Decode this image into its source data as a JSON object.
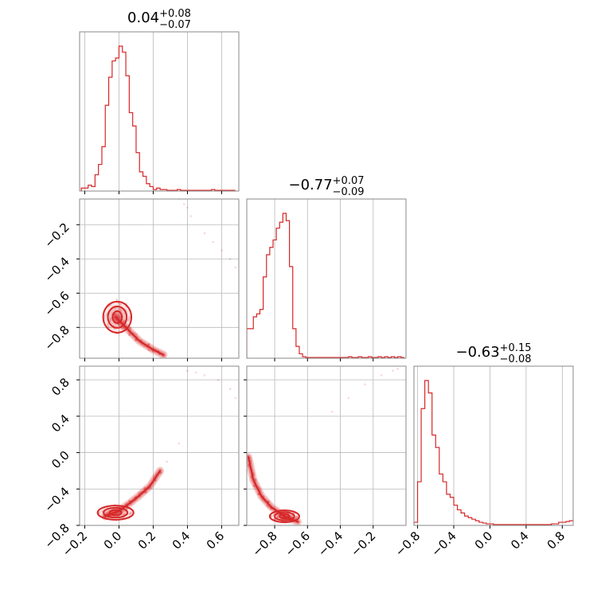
{
  "chart_data": {
    "type": "corner",
    "color": "#d62728",
    "grid": true,
    "panels": [
      {
        "id": "hist-0",
        "type": "hist",
        "col": 0,
        "row": 0,
        "title": {
          "median": "0.04",
          "plus": "+0.08",
          "minus": "−0.07"
        },
        "xlim": [
          -0.23,
          0.7
        ],
        "xticks": [
          -0.2,
          0.0,
          0.2,
          0.4,
          0.6
        ],
        "show_xlabels": false,
        "show_ylabels": false,
        "bins": [
          -0.22,
          -0.2,
          -0.18,
          -0.16,
          -0.14,
          -0.12,
          -0.1,
          -0.08,
          -0.06,
          -0.04,
          -0.02,
          0.0,
          0.02,
          0.04,
          0.06,
          0.08,
          0.1,
          0.12,
          0.14,
          0.16,
          0.18,
          0.2,
          0.22,
          0.24,
          0.26,
          0.28,
          0.3,
          0.32,
          0.34,
          0.36,
          0.38,
          0.4,
          0.42,
          0.44,
          0.46,
          0.48,
          0.5,
          0.52,
          0.54,
          0.56,
          0.58,
          0.6,
          0.62,
          0.64,
          0.66,
          0.68
        ],
        "counts": [
          0.02,
          0.02,
          0.04,
          0.03,
          0.11,
          0.18,
          0.3,
          0.58,
          0.77,
          0.88,
          0.9,
          0.98,
          0.94,
          0.78,
          0.53,
          0.44,
          0.26,
          0.13,
          0.1,
          0.05,
          0.03,
          0.01,
          0.02,
          0.01,
          0.01,
          0.005,
          0.005,
          0.005,
          0.01,
          0.005,
          0.005,
          0.005,
          0.005,
          0.005,
          0.005,
          0.005,
          0.005,
          0.005,
          0.01,
          0.005,
          0.005,
          0.005,
          0.005,
          0.005,
          0.005
        ]
      },
      {
        "id": "hist-1",
        "type": "hist",
        "col": 1,
        "row": 1,
        "title": {
          "median": "−0.77",
          "plus": "+0.07",
          "minus": "−0.09"
        },
        "xlim": [
          -0.97,
          0.0
        ],
        "xticks": [
          -0.8,
          -0.6,
          -0.4,
          -0.2
        ],
        "show_xlabels": false,
        "show_ylabels": false,
        "bins": [
          -0.97,
          -0.95,
          -0.93,
          -0.91,
          -0.89,
          -0.87,
          -0.85,
          -0.83,
          -0.81,
          -0.79,
          -0.77,
          -0.75,
          -0.73,
          -0.71,
          -0.69,
          -0.67,
          -0.65,
          -0.63,
          -0.61,
          -0.59,
          -0.57,
          -0.55,
          -0.53,
          -0.51,
          -0.49,
          -0.47,
          -0.45,
          -0.43,
          -0.41,
          -0.39,
          -0.37,
          -0.35,
          -0.33,
          -0.31,
          -0.29,
          -0.27,
          -0.25,
          -0.23,
          -0.21,
          -0.19,
          -0.17,
          -0.15,
          -0.13,
          -0.11,
          -0.09,
          -0.07,
          -0.05,
          -0.03,
          -0.01
        ],
        "counts": [
          0.2,
          0.2,
          0.28,
          0.3,
          0.33,
          0.55,
          0.7,
          0.75,
          0.8,
          0.88,
          0.92,
          0.98,
          0.93,
          0.62,
          0.2,
          0.08,
          0.03,
          0.01,
          0.005,
          0.005,
          0.005,
          0.005,
          0.005,
          0.005,
          0.005,
          0.005,
          0.005,
          0.005,
          0.005,
          0.005,
          0.005,
          0.01,
          0.005,
          0.005,
          0.01,
          0.005,
          0.005,
          0.01,
          0.005,
          0.005,
          0.01,
          0.005,
          0.01,
          0.005,
          0.01,
          0.005,
          0.01,
          0.005
        ]
      },
      {
        "id": "hist-2",
        "type": "hist",
        "col": 2,
        "row": 2,
        "title": {
          "median": "−0.63",
          "plus": "+0.15",
          "minus": "−0.08"
        },
        "xlim": [
          -0.84,
          0.92
        ],
        "xticks": [
          -0.8,
          -0.4,
          0.0,
          0.4,
          0.8
        ],
        "xtick_labels": [
          "−0.8",
          "−0.4",
          "0.0",
          "0.4",
          "0.8"
        ],
        "show_xlabels": true,
        "show_ylabels": false,
        "bins": [
          -0.84,
          -0.8,
          -0.76,
          -0.72,
          -0.68,
          -0.64,
          -0.6,
          -0.56,
          -0.52,
          -0.48,
          -0.44,
          -0.4,
          -0.36,
          -0.32,
          -0.28,
          -0.24,
          -0.2,
          -0.16,
          -0.12,
          -0.08,
          -0.04,
          0.0,
          0.04,
          0.08,
          0.12,
          0.16,
          0.2,
          0.24,
          0.28,
          0.32,
          0.36,
          0.4,
          0.44,
          0.48,
          0.52,
          0.56,
          0.6,
          0.64,
          0.68,
          0.72,
          0.76,
          0.8,
          0.84,
          0.88,
          0.92
        ],
        "counts": [
          0.02,
          0.28,
          0.75,
          0.93,
          0.85,
          0.58,
          0.5,
          0.33,
          0.28,
          0.2,
          0.18,
          0.13,
          0.1,
          0.08,
          0.06,
          0.05,
          0.04,
          0.03,
          0.02,
          0.015,
          0.01,
          0.01,
          0.005,
          0.005,
          0.005,
          0.005,
          0.005,
          0.005,
          0.005,
          0.005,
          0.005,
          0.005,
          0.005,
          0.005,
          0.005,
          0.005,
          0.005,
          0.005,
          0.01,
          0.01,
          0.02,
          0.02,
          0.025,
          0.03
        ]
      },
      {
        "id": "scatter-1-0",
        "type": "contour",
        "col": 0,
        "row": 1,
        "xlim": [
          -0.23,
          0.7
        ],
        "ylim": [
          -0.98,
          -0.05
        ],
        "xticks": [
          -0.2,
          0.0,
          0.2,
          0.4,
          0.6
        ],
        "yticks": [
          -0.8,
          -0.6,
          -0.4,
          -0.2
        ],
        "ytick_labels": [
          "−0.8",
          "−0.6",
          "−0.4",
          "−0.2"
        ],
        "show_xlabels": false,
        "show_ylabels": true,
        "core": {
          "cx": -0.01,
          "cy": -0.74,
          "rx": 0.055,
          "ry": 0.07
        },
        "tail": [
          [
            -0.02,
            -0.74
          ],
          [
            0.05,
            -0.81
          ],
          [
            0.12,
            -0.88
          ],
          [
            0.2,
            -0.93
          ],
          [
            0.26,
            -0.96
          ]
        ],
        "outliers": [
          [
            0.35,
            -0.05
          ],
          [
            0.4,
            -0.1
          ],
          [
            0.42,
            -0.15
          ],
          [
            0.5,
            -0.25
          ],
          [
            0.6,
            -0.35
          ],
          [
            0.65,
            -0.4
          ],
          [
            0.38,
            -0.08
          ],
          [
            0.55,
            -0.3
          ],
          [
            0.68,
            -0.45
          ]
        ]
      },
      {
        "id": "scatter-2-0",
        "type": "contour",
        "col": 0,
        "row": 2,
        "xlim": [
          -0.23,
          0.7
        ],
        "ylim": [
          -0.8,
          0.95
        ],
        "xticks": [
          -0.2,
          0.0,
          0.2,
          0.4,
          0.6
        ],
        "xtick_labels": [
          "−0.2",
          "0.0",
          "0.2",
          "0.4",
          "0.6"
        ],
        "yticks": [
          -0.8,
          -0.4,
          0.0,
          0.4,
          0.8
        ],
        "ytick_labels": [
          "−0.8",
          "−0.4",
          "0.0",
          "0.4",
          "0.8"
        ],
        "show_xlabels": true,
        "show_ylabels": true,
        "core": {
          "cx": -0.02,
          "cy": -0.66,
          "rx": 0.07,
          "ry": 0.06
        },
        "tail": [
          [
            -0.08,
            -0.7
          ],
          [
            0.0,
            -0.64
          ],
          [
            0.06,
            -0.56
          ],
          [
            0.12,
            -0.47
          ],
          [
            0.18,
            -0.37
          ],
          [
            0.24,
            -0.2
          ]
        ],
        "outliers": [
          [
            0.28,
            -0.1
          ],
          [
            0.35,
            0.1
          ],
          [
            0.4,
            0.9
          ],
          [
            0.5,
            0.85
          ],
          [
            0.58,
            0.8
          ],
          [
            0.65,
            0.7
          ],
          [
            0.68,
            0.6
          ],
          [
            0.45,
            0.88
          ]
        ]
      },
      {
        "id": "scatter-2-1",
        "type": "contour",
        "col": 1,
        "row": 2,
        "xlim": [
          -0.97,
          0.0
        ],
        "ylim": [
          -0.8,
          0.95
        ],
        "xticks": [
          -0.8,
          -0.6,
          -0.4,
          -0.2
        ],
        "xtick_labels": [
          "−0.8",
          "−0.6",
          "−0.4",
          "−0.2"
        ],
        "yticks": [
          -0.8,
          -0.4,
          0.0,
          0.4,
          0.8
        ],
        "show_xlabels": true,
        "show_ylabels": false,
        "core": {
          "cx": -0.74,
          "cy": -0.7,
          "rx": 0.06,
          "ry": 0.05
        },
        "tail": [
          [
            -0.96,
            -0.05
          ],
          [
            -0.93,
            -0.3
          ],
          [
            -0.88,
            -0.48
          ],
          [
            -0.82,
            -0.6
          ],
          [
            -0.74,
            -0.7
          ],
          [
            -0.66,
            -0.76
          ]
        ],
        "outliers": [
          [
            -0.35,
            0.6
          ],
          [
            -0.25,
            0.75
          ],
          [
            -0.15,
            0.85
          ],
          [
            -0.08,
            0.9
          ],
          [
            -0.45,
            0.45
          ],
          [
            -0.05,
            0.92
          ]
        ]
      }
    ]
  }
}
